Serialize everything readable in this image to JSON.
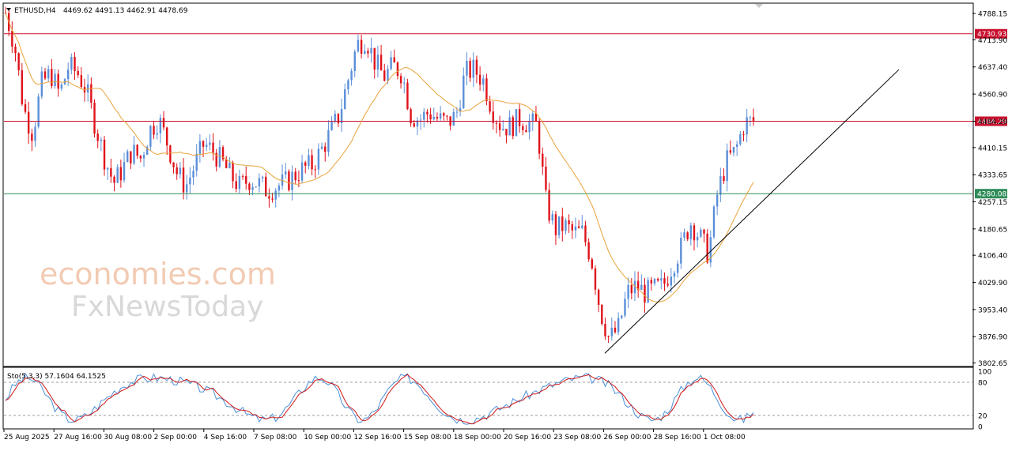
{
  "header": {
    "symbol": "ETHUSD,H4",
    "ohlc": "4469.62 4491.13 4462.91 4478.69"
  },
  "watermark": {
    "line1": "economies.com",
    "line2": "FxNewsToday"
  },
  "indicator": {
    "label": "Sto(5,3,3) 57.1604 64.1525"
  },
  "colors": {
    "bull": "#5b8fd9",
    "bear": "#e0121a",
    "ma": "#e8a23a",
    "resistance": "#c8102e",
    "support": "#2e8b57",
    "trend": "#000000",
    "stoch_main": "#4a90d9",
    "stoch_signal": "#d01818"
  },
  "chart_data": {
    "type": "candlestick",
    "price_axis_ticks": [
      "4788.15",
      "4713.90",
      "4637.40",
      "4560.90",
      "4484.29",
      "4410.15",
      "4333.65",
      "4257.15",
      "4180.65",
      "4106.40",
      "4029.90",
      "3953.40",
      "3876.90",
      "3802.65"
    ],
    "price_axis_values": [
      4788.15,
      4713.9,
      4637.4,
      4560.9,
      4484.29,
      4410.15,
      4333.65,
      4257.15,
      4180.65,
      4106.4,
      4029.9,
      3953.4,
      3876.9,
      3802.65
    ],
    "ylim": [
      3795,
      4815
    ],
    "time_labels": [
      "25 Aug 2025",
      "27 Aug 16:00",
      "30 Aug 08:00",
      "2 Sep 00:00",
      "4 Sep 16:00",
      "7 Sep 08:00",
      "10 Sep 00:00",
      "12 Sep 16:00",
      "15 Sep 08:00",
      "18 Sep 00:00",
      "20 Sep 16:00",
      "23 Sep 08:00",
      "26 Sep 00:00",
      "28 Sep 16:00",
      "1 Oct 08:00"
    ],
    "horizontal_levels": [
      {
        "label": "4730.93",
        "value": 4730.93,
        "role": "resistance"
      },
      {
        "label": "4484.29",
        "value": 4484.29,
        "role": "resistance"
      },
      {
        "label": "4280.08",
        "value": 4280.08,
        "role": "support"
      }
    ],
    "trendline": {
      "from": [
        0,
        3830
      ],
      "to": [
        1,
        4630
      ]
    },
    "price_path": [
      4790,
      4700,
      4520,
      4450,
      4590,
      4620,
      4560,
      4640,
      4620,
      4570,
      4470,
      4380,
      4310,
      4350,
      4400,
      4380,
      4460,
      4490,
      4420,
      4340,
      4300,
      4360,
      4420,
      4400,
      4370,
      4330,
      4300,
      4320,
      4310,
      4290,
      4300,
      4310,
      4330,
      4350,
      4360,
      4400,
      4450,
      4500,
      4600,
      4700,
      4720,
      4650,
      4610,
      4640,
      4620,
      4500,
      4490,
      4510,
      4490,
      4480,
      4500,
      4620,
      4630,
      4600,
      4520,
      4470,
      4470,
      4490,
      4480,
      4470,
      4250,
      4180,
      4190,
      4170,
      4170,
      4100,
      3950,
      3870,
      3900,
      4000,
      4020,
      4000,
      4010,
      4020,
      4080,
      4130,
      4200,
      4160,
      4110,
      4280,
      4370,
      4400,
      4480,
      4484
    ],
    "stoch_ylim": [
      0,
      100
    ],
    "stoch_levels": [
      20,
      80
    ],
    "stoch_axis_ticks": [
      "100",
      "80",
      "20",
      "0"
    ]
  }
}
